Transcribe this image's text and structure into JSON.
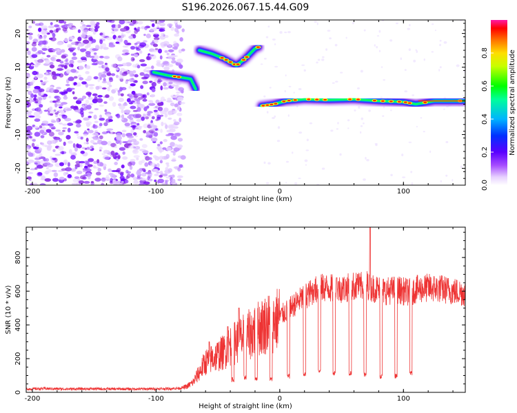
{
  "chart_data": [
    {
      "type": "heatmap",
      "title": "S196.2026.067.15.44.G09",
      "xlabel": "Height of straight line (km)",
      "ylabel": "Frequency (Hz)",
      "xlim": [
        -205,
        150
      ],
      "ylim": [
        -25,
        24
      ],
      "xticks": [
        -200,
        -100,
        0,
        100
      ],
      "yticks": [
        -20,
        -10,
        0,
        10,
        20
      ],
      "colorbar": {
        "label": "Normalized spectral amplitude",
        "range": [
          0,
          1
        ],
        "ticks": [
          0.0,
          0.2,
          0.4,
          0.6,
          0.8
        ],
        "colors": [
          "#ffffff",
          "#d9b3ff",
          "#8a2be2",
          "#3a00ff",
          "#00c8ff",
          "#00ff66",
          "#ffff00",
          "#ff8000",
          "#ff0000",
          "#ff1aa6"
        ]
      },
      "features": [
        {
          "name": "noise-field",
          "x": [
            -205,
            -78
          ],
          "freq_range": [
            -25,
            24
          ],
          "amplitude": 0.2
        },
        {
          "name": "track-1",
          "points": [
            [
              -102,
              8.5
            ],
            [
              -90,
              7.5
            ],
            [
              -80,
              7
            ],
            [
              -72,
              6.5
            ],
            [
              -68,
              3.5
            ]
          ],
          "amplitude": 0.55
        },
        {
          "name": "track-2",
          "points": [
            [
              -65,
              15
            ],
            [
              -55,
              14
            ],
            [
              -45,
              12.5
            ],
            [
              -35,
              10.5
            ],
            [
              -28,
              12.5
            ],
            [
              -20,
              15.5
            ],
            [
              -17,
              16
            ]
          ],
          "amplitude": 0.65
        },
        {
          "name": "track-3",
          "points": [
            [
              -15,
              -1.5
            ],
            [
              -5,
              -1
            ],
            [
              5,
              0
            ],
            [
              20,
              0.5
            ],
            [
              40,
              0.3
            ],
            [
              60,
              0.5
            ],
            [
              80,
              0
            ],
            [
              100,
              -0.3
            ],
            [
              110,
              -1
            ],
            [
              125,
              0
            ],
            [
              150,
              0
            ]
          ],
          "amplitude": 0.85
        }
      ]
    },
    {
      "type": "line",
      "title": "",
      "xlabel": "Height of straight line (km)",
      "ylabel": "SNR (10 * v/v)",
      "xlim": [
        -205,
        150
      ],
      "ylim": [
        0,
        980
      ],
      "xticks": [
        -200,
        -100,
        0,
        100
      ],
      "yticks": [
        0,
        200,
        400,
        600,
        800
      ],
      "series": [
        {
          "name": "SNR",
          "color": "#ee3333",
          "x": [
            -205,
            -190,
            -170,
            -150,
            -130,
            -110,
            -90,
            -80,
            -75,
            -70,
            -65,
            -60,
            -55,
            -50,
            -45,
            -40,
            -35,
            -30,
            -25,
            -20,
            -15,
            -10,
            -5,
            0,
            5,
            10,
            15,
            20,
            25,
            30,
            35,
            40,
            45,
            50,
            55,
            60,
            65,
            70,
            75,
            80,
            85,
            90,
            95,
            100,
            105,
            110,
            120,
            130,
            140,
            150
          ],
          "values": [
            20,
            22,
            20,
            21,
            20,
            20,
            22,
            25,
            35,
            60,
            120,
            180,
            200,
            220,
            240,
            280,
            300,
            320,
            340,
            370,
            390,
            410,
            420,
            450,
            480,
            510,
            540,
            570,
            590,
            610,
            620,
            620,
            610,
            615,
            620,
            630,
            625,
            640,
            620,
            610,
            600,
            605,
            610,
            600,
            595,
            610,
            620,
            615,
            600,
            590
          ]
        }
      ],
      "dropouts": [
        {
          "x": -38,
          "to": 60
        },
        {
          "x": -28,
          "to": 70
        },
        {
          "x": -19,
          "to": 70
        },
        {
          "x": -7,
          "to": 60
        },
        {
          "x": 7,
          "to": 80
        },
        {
          "x": 20,
          "to": 90
        },
        {
          "x": 32,
          "to": 110
        },
        {
          "x": 44,
          "to": 100
        },
        {
          "x": 57,
          "to": 100
        },
        {
          "x": 69,
          "to": 90
        },
        {
          "x": 82,
          "to": 80
        },
        {
          "x": 94,
          "to": 80
        },
        {
          "x": 106,
          "to": 100
        }
      ],
      "spikes": [
        {
          "x": -57,
          "value": 300
        },
        {
          "x": -42,
          "value": 390
        },
        {
          "x": -33,
          "value": 500
        },
        {
          "x": 28,
          "value": 640
        },
        {
          "x": 46,
          "value": 680
        },
        {
          "x": 63,
          "value": 700
        },
        {
          "x": 73,
          "value": 980
        }
      ]
    }
  ]
}
